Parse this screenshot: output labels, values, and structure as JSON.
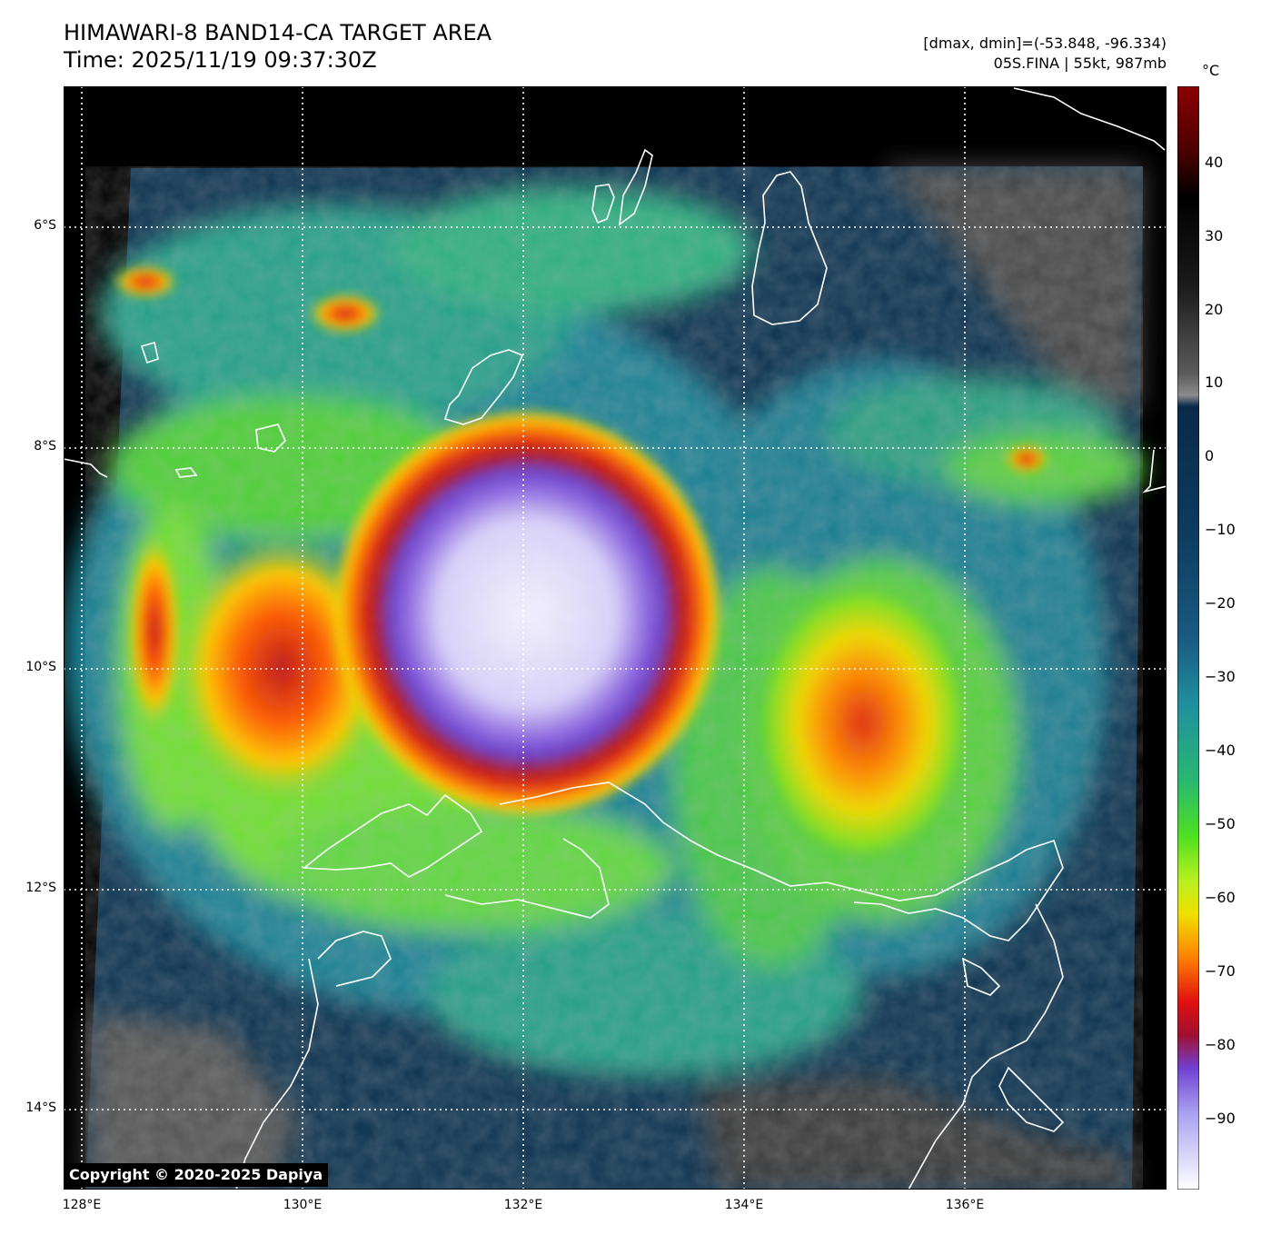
{
  "header": {
    "title_line1": "HIMAWARI-8 BAND14-CA TARGET AREA",
    "title_line2": "Time: 2025/11/19 09:37:30Z",
    "stats_line1": "[dmax, dmin]=(-53.848, -96.334)",
    "stats_line2": "05S.FINA | 55kt, 987mb"
  },
  "map": {
    "lat_labels": [
      "6°S",
      "8°S",
      "10°S",
      "12°S",
      "14°S"
    ],
    "lon_labels": [
      "128°E",
      "130°E",
      "132°E",
      "134°E",
      "136°E"
    ],
    "center_lat": "-9.6",
    "center_lon": "132.0"
  },
  "colorbar": {
    "unit": "°C",
    "ticks": [
      "40",
      "30",
      "20",
      "10",
      "0",
      "−10",
      "−20",
      "−30",
      "−40",
      "−50",
      "−60",
      "−70",
      "−80",
      "−90"
    ],
    "colors": {
      "warm_top": "#8b0000",
      "black": "#000000",
      "gray": "#8c8c8c",
      "navy": "#0a2a4a",
      "teal": "#1f8fa0",
      "green": "#50e020",
      "yellow": "#f0e000",
      "orange": "#ff8000",
      "red": "#e01010",
      "purple": "#7040d0",
      "white": "#ffffff"
    }
  },
  "copyright": "Copyright © 2020-2025 Dapiya"
}
